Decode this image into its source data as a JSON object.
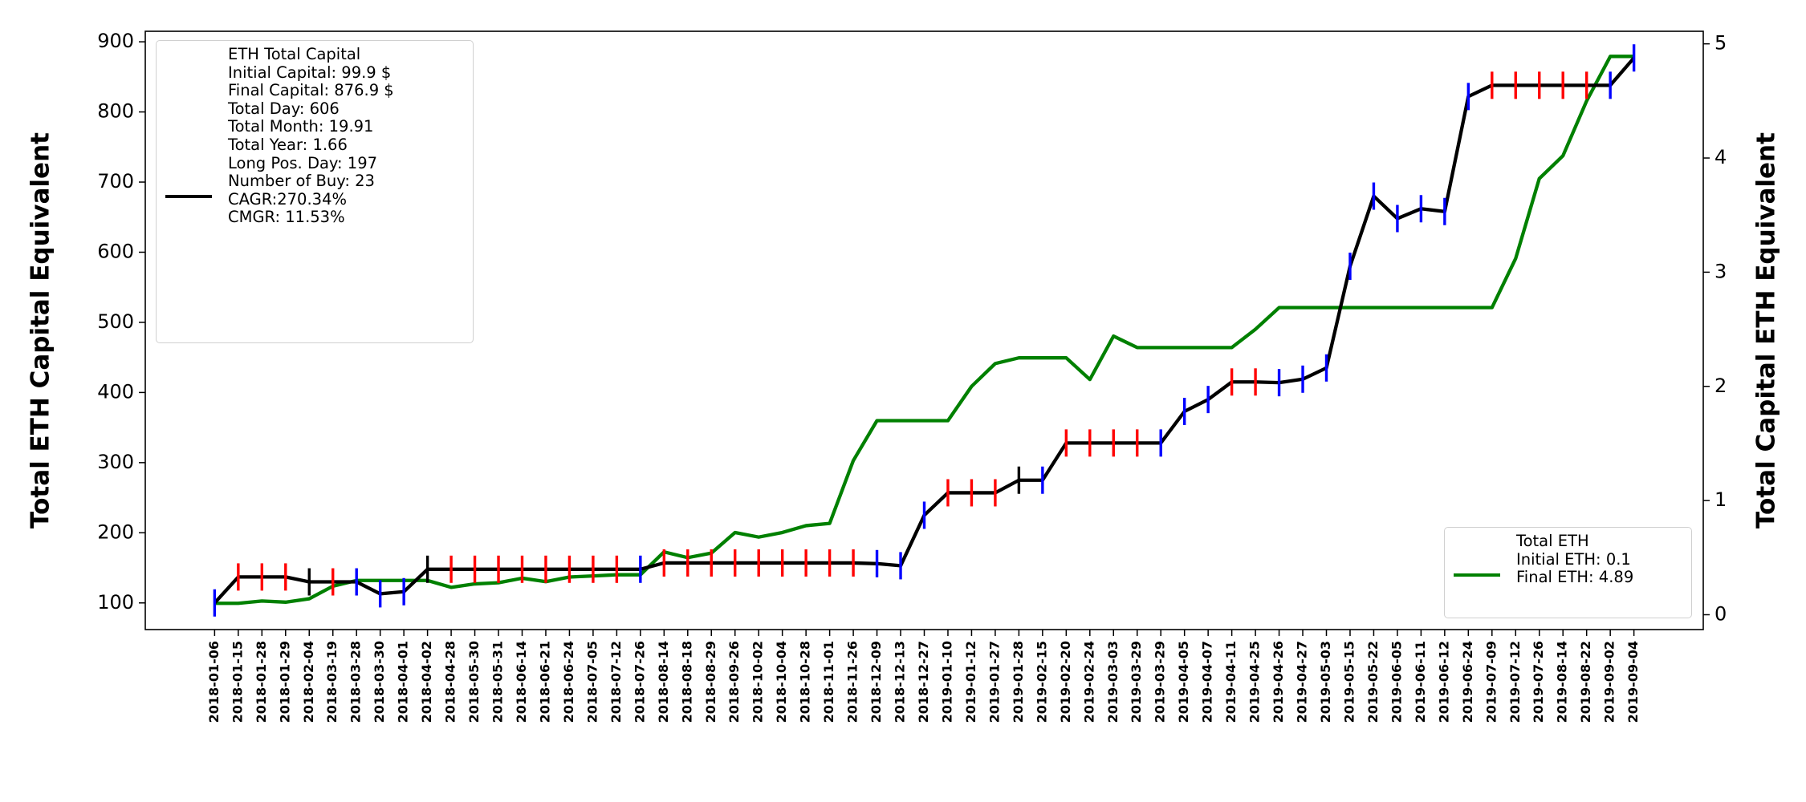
{
  "chart_data": {
    "type": "line",
    "y_label": "Total ETH Capital Equivalent",
    "y2_label": "Total Capital ETH Equivalent",
    "categories": [
      "2018-01-06",
      "2018-01-15",
      "2018-01-28",
      "2018-01-29",
      "2018-02-04",
      "2018-03-19",
      "2018-03-28",
      "2018-03-30",
      "2018-04-01",
      "2018-04-02",
      "2018-04-28",
      "2018-05-30",
      "2018-05-31",
      "2018-06-14",
      "2018-06-21",
      "2018-06-24",
      "2018-07-05",
      "2018-07-12",
      "2018-07-26",
      "2018-08-14",
      "2018-08-18",
      "2018-08-29",
      "2018-09-26",
      "2018-10-02",
      "2018-10-04",
      "2018-10-28",
      "2018-11-01",
      "2018-11-26",
      "2018-12-09",
      "2018-12-13",
      "2018-12-27",
      "2019-01-10",
      "2019-01-12",
      "2019-01-27",
      "2019-01-28",
      "2019-02-15",
      "2019-02-20",
      "2019-02-24",
      "2019-03-03",
      "2019-03-29",
      "2019-03-29",
      "2019-04-05",
      "2019-04-07",
      "2019-04-11",
      "2019-04-25",
      "2019-04-26",
      "2019-04-27",
      "2019-05-03",
      "2019-05-15",
      "2019-05-22",
      "2019-06-05",
      "2019-06-11",
      "2019-06-12",
      "2019-06-24",
      "2019-07-09",
      "2019-07-12",
      "2019-07-26",
      "2019-08-14",
      "2019-08-22",
      "2019-09-02",
      "2019-09-04"
    ],
    "series": [
      {
        "name": "ETH Total Capital\nInitial Capital: 99.9 $\nFinal Capital: 876.9 $\nTotal Day: 606\nTotal Month: 19.91\nTotal Year: 1.66\nLong Pos. Day: 197\nNumber of Buy: 23\nCAGR:270.34%\nCMGR: 11.53%",
        "color": "#000000",
        "axis": "y",
        "values": [
          100,
          137,
          137,
          137,
          130,
          130,
          130,
          113,
          116,
          148,
          148,
          148,
          148,
          148,
          148,
          148,
          148,
          148,
          148,
          157,
          157,
          157,
          157,
          157,
          157,
          157,
          157,
          157,
          156,
          153,
          225,
          257,
          257,
          257,
          275,
          275,
          328,
          328,
          328,
          328,
          328,
          373,
          390,
          415,
          415,
          414,
          419,
          435,
          580,
          680,
          648,
          662,
          658,
          822,
          838,
          838,
          838,
          838,
          838,
          838,
          877
        ],
        "marker_colors": [
          "#0000ff",
          "#ff0000",
          "#ff0000",
          "#ff0000",
          "#000000",
          "#ff0000",
          "#0000ff",
          "#0000ff",
          "#0000ff",
          "#000000",
          "#ff0000",
          "#ff0000",
          "#ff0000",
          "#ff0000",
          "#ff0000",
          "#ff0000",
          "#ff0000",
          "#ff0000",
          "#0000ff",
          "#ff0000",
          "#ff0000",
          "#ff0000",
          "#ff0000",
          "#ff0000",
          "#ff0000",
          "#ff0000",
          "#ff0000",
          "#ff0000",
          "#0000ff",
          "#0000ff",
          "#0000ff",
          "#ff0000",
          "#ff0000",
          "#ff0000",
          "#000000",
          "#0000ff",
          "#ff0000",
          "#ff0000",
          "#ff0000",
          "#ff0000",
          "#0000ff",
          "#0000ff",
          "#0000ff",
          "#ff0000",
          "#ff0000",
          "#0000ff",
          "#0000ff",
          "#0000ff",
          "#0000ff",
          "#0000ff",
          "#0000ff",
          "#0000ff",
          "#0000ff",
          "#0000ff",
          "#ff0000",
          "#ff0000",
          "#ff0000",
          "#ff0000",
          "#ff0000",
          "#0000ff",
          "#0000ff"
        ]
      },
      {
        "name": "Total ETH\nInitial ETH: 0.1\nFinal ETH: 4.89",
        "color": "#008000",
        "axis": "y2",
        "values": [
          0.1,
          0.1,
          0.12,
          0.11,
          0.14,
          0.25,
          0.3,
          0.3,
          0.3,
          0.3,
          0.24,
          0.27,
          0.28,
          0.32,
          0.29,
          0.33,
          0.34,
          0.35,
          0.35,
          0.55,
          0.5,
          0.54,
          0.72,
          0.68,
          0.72,
          0.78,
          0.8,
          1.35,
          1.7,
          1.7,
          1.7,
          1.7,
          2.0,
          2.2,
          2.25,
          2.25,
          2.25,
          2.06,
          2.44,
          2.34,
          2.34,
          2.34,
          2.34,
          2.34,
          2.5,
          2.69,
          2.69,
          2.69,
          2.69,
          2.69,
          2.69,
          2.69,
          2.69,
          2.69,
          2.69,
          3.12,
          3.82,
          4.02,
          4.5,
          4.89,
          4.89
        ]
      }
    ],
    "ylim": [
      62,
      915
    ],
    "yticks": [
      100,
      200,
      300,
      400,
      500,
      600,
      700,
      800,
      900
    ],
    "y2lim": [
      -0.13,
      5.11
    ],
    "y2ticks": [
      0,
      1,
      2,
      3,
      4,
      5
    ],
    "legend": [
      "upper left",
      "lower right"
    ]
  }
}
